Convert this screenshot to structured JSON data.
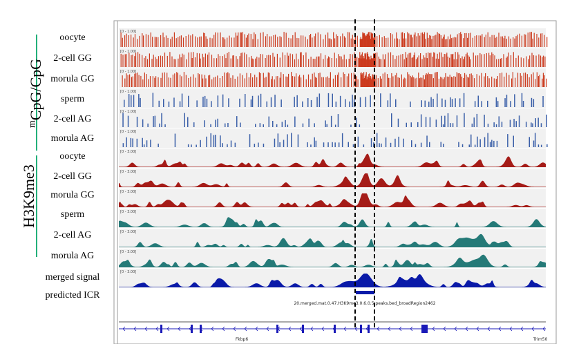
{
  "groups": {
    "methylation": {
      "label": "CpG/CpG",
      "superscript": "m"
    },
    "h3k9me3": {
      "label": "H3K9me3"
    }
  },
  "tracks": [
    {
      "label": "oocyte",
      "type": "methylation",
      "scale": "[0 - 1.00]",
      "color": "#cc3b1e"
    },
    {
      "label": "2-cell GG",
      "type": "methylation",
      "scale": "[0 - 1.00]",
      "color": "#cc3b1e"
    },
    {
      "label": "morula GG",
      "type": "methylation",
      "scale": "[0 - 1.00]",
      "color": "#cc3b1e"
    },
    {
      "label": "sperm",
      "type": "methylation",
      "scale": "[0 - 1.00]",
      "color": "#3a5fa8"
    },
    {
      "label": "2-cell AG",
      "type": "methylation",
      "scale": "[0 - 1.00]",
      "color": "#3a5fa8"
    },
    {
      "label": "morula AG",
      "type": "methylation",
      "scale": "[0 - 1.00]",
      "color": "#3a5fa8"
    },
    {
      "label": "oocyte",
      "type": "chip",
      "scale": "[0 - 3.00]",
      "color": "#a51c18"
    },
    {
      "label": "2-cell GG",
      "type": "chip",
      "scale": "[0 - 3.00]",
      "color": "#a51c18"
    },
    {
      "label": "morula GG",
      "type": "chip",
      "scale": "[0 - 3.00]",
      "color": "#a51c18"
    },
    {
      "label": "sperm",
      "type": "chip",
      "scale": "[0 - 3.00]",
      "color": "#257a78"
    },
    {
      "label": "2-cell AG",
      "type": "chip",
      "scale": "[0 - 3.00]",
      "color": "#257a78"
    },
    {
      "label": "morula AG",
      "type": "chip",
      "scale": "[0 - 3.00]",
      "color": "#257a78"
    },
    {
      "label": "merged signal",
      "type": "chip",
      "scale": "[0 - 3.00]",
      "color": "#0a1aa8"
    }
  ],
  "predicted": {
    "label": "predicted ICR",
    "feature_name": "20.merged.mat.0.47.H3K9me3.0.6.0.5.peaks.bed_broadRegion2462",
    "color": "#0a1aa8"
  },
  "genes": {
    "left": "Fkbp6",
    "right": "Trim50",
    "color": "#1a1ab8"
  },
  "colors": {
    "group_bar": "#22b07a",
    "highlight_line": "#000000",
    "track_bg": "#f1f1f1"
  }
}
